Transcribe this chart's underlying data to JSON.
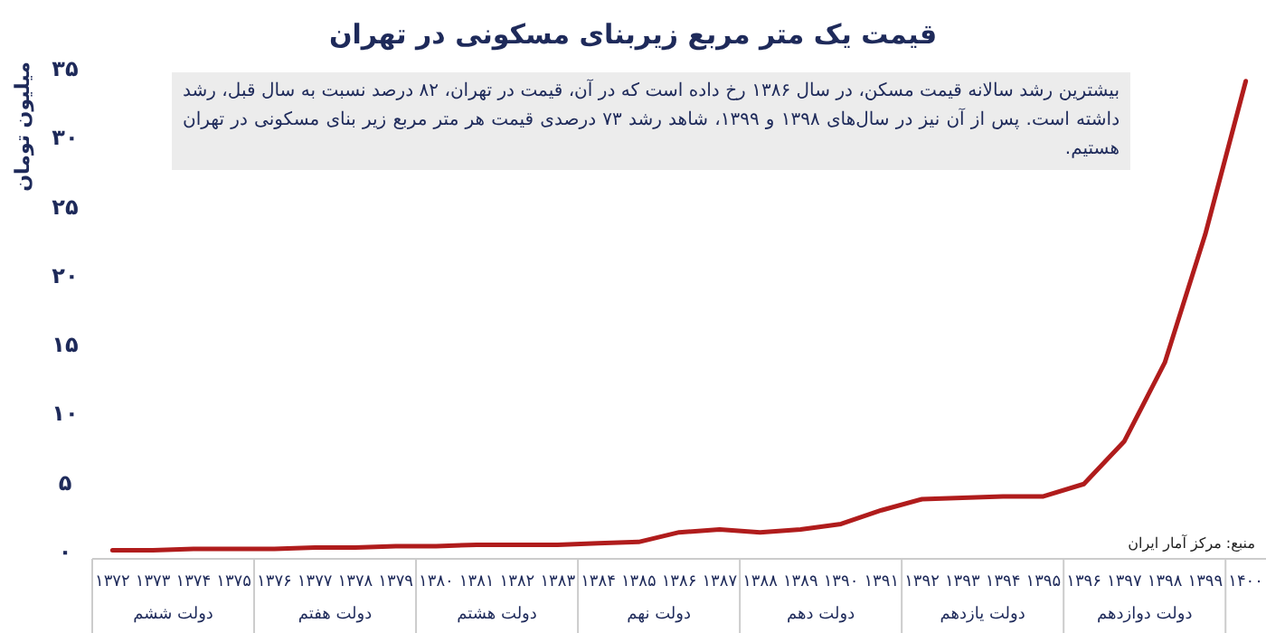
{
  "chart_data": {
    "type": "line",
    "title": "قیمت یک متر مربع زیربنای مسکونی در تهران",
    "ylabel": "میلیون تومان",
    "categories": [
      "۱۳۷۲",
      "۱۳۷۳",
      "۱۳۷۴",
      "۱۳۷۵",
      "۱۳۷۶",
      "۱۳۷۷",
      "۱۳۷۸",
      "۱۳۷۹",
      "۱۳۸۰",
      "۱۳۸۱",
      "۱۳۸۲",
      "۱۳۸۳",
      "۱۳۸۴",
      "۱۳۸۵",
      "۱۳۸۶",
      "۱۳۸۷",
      "۱۳۸۸",
      "۱۳۸۹",
      "۱۳۹۰",
      "۱۳۹۱",
      "۱۳۹۲",
      "۱۳۹۳",
      "۱۳۹۴",
      "۱۳۹۵",
      "۱۳۹۶",
      "۱۳۹۷",
      "۱۳۹۸",
      "۱۳۹۹",
      "۱۴۰۰"
    ],
    "series": [
      {
        "color": "#b01c1c",
        "values": [
          0.1,
          0.1,
          0.2,
          0.2,
          0.2,
          0.3,
          0.3,
          0.4,
          0.4,
          0.5,
          0.5,
          0.5,
          0.6,
          0.7,
          1.4,
          1.6,
          1.4,
          1.6,
          2,
          3,
          3.8,
          3.9,
          4,
          4,
          4.9,
          8,
          13.7,
          23,
          34.1
        ]
      }
    ],
    "ylim": [
      0,
      35
    ],
    "yticks": [
      {
        "value": 0,
        "label": "۰"
      },
      {
        "value": 5,
        "label": "۵"
      },
      {
        "value": 10,
        "label": "۱۰"
      },
      {
        "value": 15,
        "label": "۱۵"
      },
      {
        "value": 20,
        "label": "۲۰"
      },
      {
        "value": 25,
        "label": "۲۵"
      },
      {
        "value": 30,
        "label": "۳۰"
      },
      {
        "value": 35,
        "label": "۳۵"
      }
    ],
    "annotations": [
      "بیشترین رشد سالانه قیمت مسکن، در سال ۱۳۸۶ رخ داده است که در آن، قیمت در تهران، ۸۲ درصد نسبت به سال قبل، رشد داشته است.  پس از آن نیز در سال‌های ۱۳۹۸ و ۱۳۹۹، شاهد رشد ۷۳ درصدی قیمت هر متر مربع زیر بنای مسکونی در  تهران هستیم.",
      "منبع: مرکز آمار ایران",
      "دولت ششم",
      "دولت هفتم",
      "دولت هشتم",
      "دولت نهم",
      "دولت دهم",
      "دولت یازدهم",
      "دولت دوازدهم"
    ]
  }
}
